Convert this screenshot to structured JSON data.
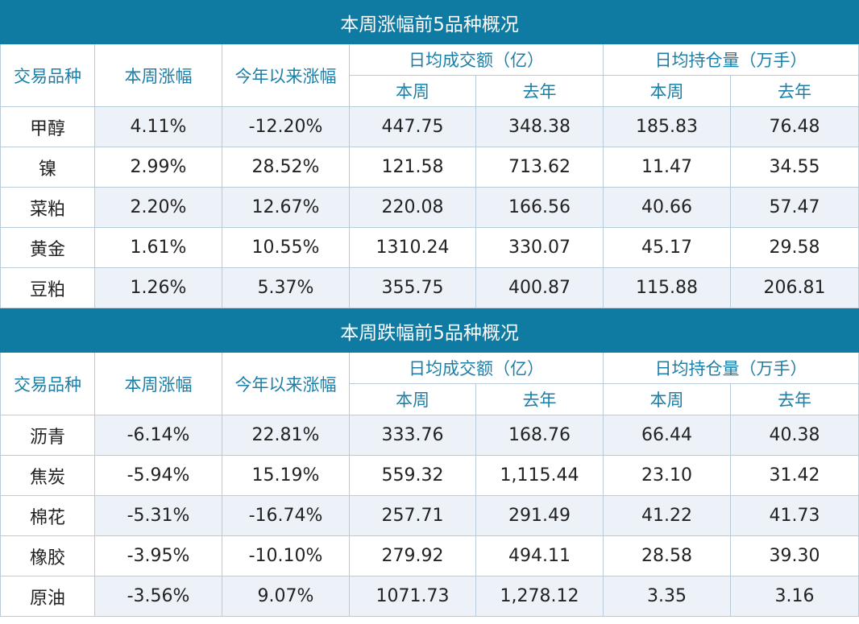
{
  "tables": [
    {
      "title": "本周涨幅前5品种概况",
      "header_top": [
        "交易品种",
        "本周涨幅",
        "今年以来涨幅",
        "日均成交额（亿）",
        "日均持仓量（万手）"
      ],
      "header_sub": [
        "本周",
        "去年",
        "本周",
        "去年"
      ],
      "rows": [
        [
          "甲醇",
          "4.11%",
          "-12.20%",
          "447.75",
          "348.38",
          "185.83",
          "76.48"
        ],
        [
          "镍",
          "2.99%",
          "28.52%",
          "121.58",
          "713.62",
          "11.47",
          "34.55"
        ],
        [
          "菜粕",
          "2.20%",
          "12.67%",
          "220.08",
          "166.56",
          "40.66",
          "57.47"
        ],
        [
          "黄金",
          "1.61%",
          "10.55%",
          "1310.24",
          "330.07",
          "45.17",
          "29.58"
        ],
        [
          "豆粕",
          "1.26%",
          "5.37%",
          "355.75",
          "400.87",
          "115.88",
          "206.81"
        ]
      ]
    },
    {
      "title": "本周跌幅前5品种概况",
      "header_top": [
        "交易品种",
        "本周涨幅",
        "今年以来涨幅",
        "日均成交额（亿）",
        "日均持仓量（万手）"
      ],
      "header_sub": [
        "本周",
        "去年",
        "本周",
        "去年"
      ],
      "rows": [
        [
          "沥青",
          "-6.14%",
          "22.81%",
          "333.76",
          "168.76",
          "66.44",
          "40.38"
        ],
        [
          "焦炭",
          "-5.94%",
          "15.19%",
          "559.32",
          "1,115.44",
          "23.10",
          "31.42"
        ],
        [
          "棉花",
          "-5.31%",
          "-16.74%",
          "257.71",
          "291.49",
          "41.22",
          "41.73"
        ],
        [
          "橡胶",
          "-3.95%",
          "-10.10%",
          "279.92",
          "494.11",
          "28.58",
          "39.30"
        ],
        [
          "原油",
          "-3.56%",
          "9.07%",
          "1071.73",
          "1,278.12",
          "3.35",
          "3.16"
        ]
      ]
    }
  ]
}
